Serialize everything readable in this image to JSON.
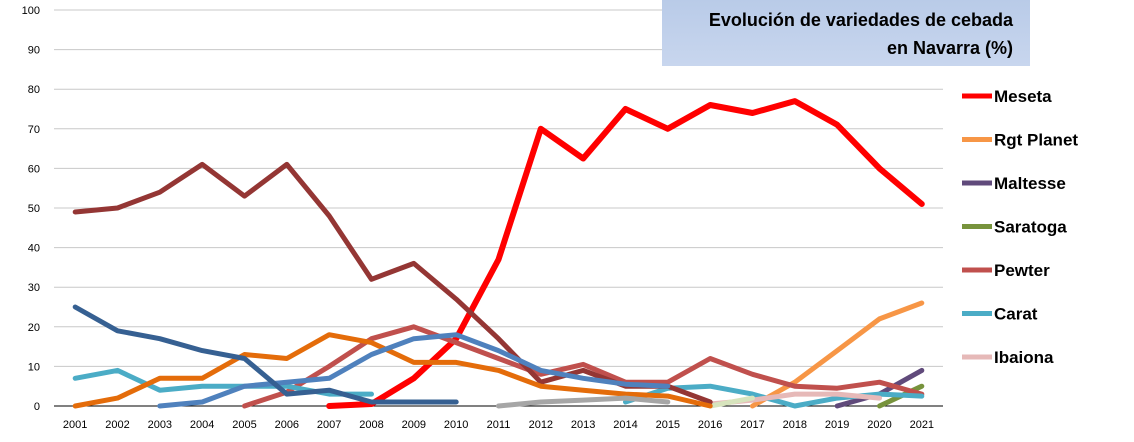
{
  "chart_data": {
    "type": "line",
    "title_lines": [
      "Evolución de variedades de cebada",
      "en Navarra (%)"
    ],
    "xlabel": "",
    "ylabel": "",
    "ylim": [
      0,
      100
    ],
    "yticks": [
      "0",
      "10",
      "20",
      "30",
      "40",
      "50",
      "60",
      "70",
      "80",
      "90",
      "100"
    ],
    "grid": true,
    "legend_position": "right",
    "x": [
      "2001",
      "2002",
      "2003",
      "2004",
      "2005",
      "2006",
      "2007",
      "2008",
      "2009",
      "2010",
      "2011",
      "2012",
      "2013",
      "2014",
      "2015",
      "2016",
      "2017",
      "2018",
      "2019",
      "2020",
      "2021"
    ],
    "series": [
      {
        "name": "Meseta",
        "color": "#ff0000",
        "width": 6,
        "legend": true,
        "values": [
          null,
          null,
          null,
          null,
          null,
          null,
          0,
          0.5,
          7,
          17,
          37,
          70,
          62.5,
          75,
          70,
          76,
          74,
          77,
          71,
          60,
          51
        ]
      },
      {
        "name": "Rgt Planet",
        "color": "#f79646",
        "width": 5,
        "legend": true,
        "values": [
          null,
          null,
          null,
          null,
          null,
          null,
          null,
          null,
          null,
          null,
          null,
          null,
          null,
          null,
          null,
          null,
          0,
          6,
          14,
          22,
          26
        ]
      },
      {
        "name": "Maltesse",
        "color": "#604a7b",
        "width": 5,
        "legend": true,
        "values": [
          null,
          null,
          null,
          null,
          null,
          null,
          null,
          null,
          null,
          null,
          null,
          null,
          null,
          null,
          null,
          null,
          null,
          null,
          0,
          3,
          9
        ]
      },
      {
        "name": "Saratoga",
        "color": "#77933c",
        "width": 5,
        "legend": true,
        "values": [
          null,
          null,
          null,
          null,
          null,
          null,
          null,
          null,
          null,
          null,
          null,
          null,
          null,
          null,
          null,
          null,
          null,
          null,
          null,
          0,
          5
        ]
      },
      {
        "name": "Pewter",
        "color": "#c0504d",
        "width": 5,
        "legend": true,
        "values": [
          null,
          null,
          null,
          null,
          0,
          3.5,
          10,
          17,
          20,
          16,
          12,
          8,
          10.5,
          6,
          6,
          12,
          8,
          5,
          4.5,
          6,
          3
        ]
      },
      {
        "name": "Carat",
        "color": "#4bacc6",
        "width": 5,
        "legend": true,
        "values": [
          7,
          9,
          4,
          5,
          5,
          5,
          3,
          3,
          null,
          null,
          null,
          null,
          null,
          1,
          4.5,
          5,
          3,
          0,
          2,
          3,
          2.5
        ]
      },
      {
        "name": "Ibaiona",
        "color": "#e6b9b8",
        "width": 5,
        "legend": true,
        "values": [
          null,
          null,
          null,
          null,
          null,
          null,
          null,
          null,
          null,
          null,
          null,
          null,
          null,
          null,
          null,
          0.5,
          1.5,
          3,
          3,
          2,
          null
        ]
      },
      {
        "name": "",
        "color": "#d7e4bd",
        "width": 5,
        "legend": false,
        "values": [
          null,
          null,
          null,
          null,
          null,
          null,
          null,
          null,
          null,
          null,
          null,
          null,
          null,
          null,
          null,
          0,
          2,
          null,
          null,
          null,
          null
        ]
      },
      {
        "name": "",
        "color": "#943634",
        "width": 5,
        "legend": false,
        "values": [
          49,
          50,
          54,
          61,
          53,
          61,
          48,
          32,
          36,
          27,
          17,
          6,
          9,
          5,
          5,
          1,
          null,
          null,
          null,
          null,
          null
        ]
      },
      {
        "name": "",
        "color": "#e46c0a",
        "width": 5,
        "legend": false,
        "values": [
          0,
          2,
          7,
          7,
          13,
          12,
          18,
          16,
          11,
          11,
          9,
          5,
          4,
          3,
          2.5,
          0,
          null,
          null,
          null,
          null,
          null
        ]
      },
      {
        "name": "",
        "color": "#4f81bd",
        "width": 5,
        "legend": false,
        "values": [
          null,
          null,
          0,
          1,
          5,
          6,
          7,
          13,
          17,
          18,
          14,
          9,
          7,
          5.5,
          5,
          null,
          null,
          null,
          null,
          null,
          null
        ]
      },
      {
        "name": "",
        "color": "#366092",
        "width": 5,
        "legend": false,
        "values": [
          25,
          19,
          17,
          14,
          12,
          3,
          4,
          1,
          1,
          1,
          null,
          null,
          null,
          null,
          null,
          null,
          null,
          null,
          null,
          null,
          null
        ]
      },
      {
        "name": "",
        "color": "#a6a6a6",
        "width": 5,
        "legend": false,
        "values": [
          null,
          null,
          null,
          null,
          null,
          null,
          null,
          null,
          null,
          null,
          0,
          1,
          1.5,
          2,
          1,
          null,
          null,
          null,
          null,
          null,
          null
        ]
      }
    ]
  }
}
